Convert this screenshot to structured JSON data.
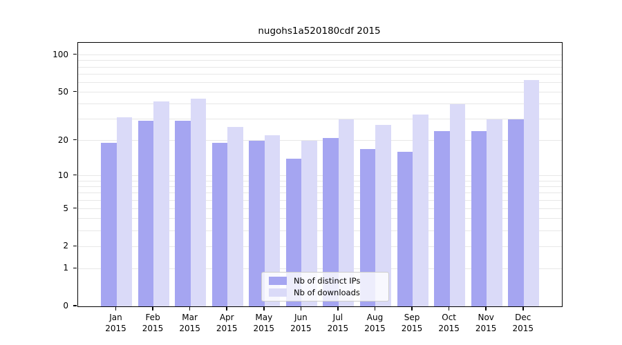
{
  "chart_data": {
    "type": "bar",
    "title": "nugohs1a520180cdf 2015",
    "x_months": [
      "Jan",
      "Feb",
      "Mar",
      "Apr",
      "May",
      "Jun",
      "Jul",
      "Aug",
      "Sep",
      "Oct",
      "Nov",
      "Dec"
    ],
    "x_year": "2015",
    "series": [
      {
        "name": "Nb of distinct IPs",
        "color": "#a5a5f1",
        "values": [
          19,
          29,
          29,
          19,
          20,
          14,
          21,
          17,
          16,
          24,
          24,
          30
        ]
      },
      {
        "name": "Nb of downloads",
        "color": "#dadaf8",
        "values": [
          31,
          42,
          44,
          26,
          22,
          20,
          30,
          27,
          33,
          40,
          30,
          63
        ]
      }
    ],
    "yscale": "log1p",
    "ylim": [
      0,
      124
    ],
    "ytick_labels": [
      "100",
      "50",
      "20",
      "10",
      "5",
      "2",
      "1",
      "0"
    ],
    "yticks": [
      100,
      50,
      20,
      10,
      5,
      2,
      1,
      0
    ],
    "gridlines": [
      1,
      2,
      3,
      4,
      5,
      6,
      7,
      8,
      9,
      10,
      20,
      30,
      40,
      50,
      60,
      70,
      80,
      90,
      100
    ],
    "grid": true,
    "legend_position": "lower center"
  },
  "colors": {
    "background": "#ffffff",
    "grid": "#e7e7e7",
    "spine": "#000000",
    "text": "#000000",
    "legend_border": "#cccccc"
  }
}
